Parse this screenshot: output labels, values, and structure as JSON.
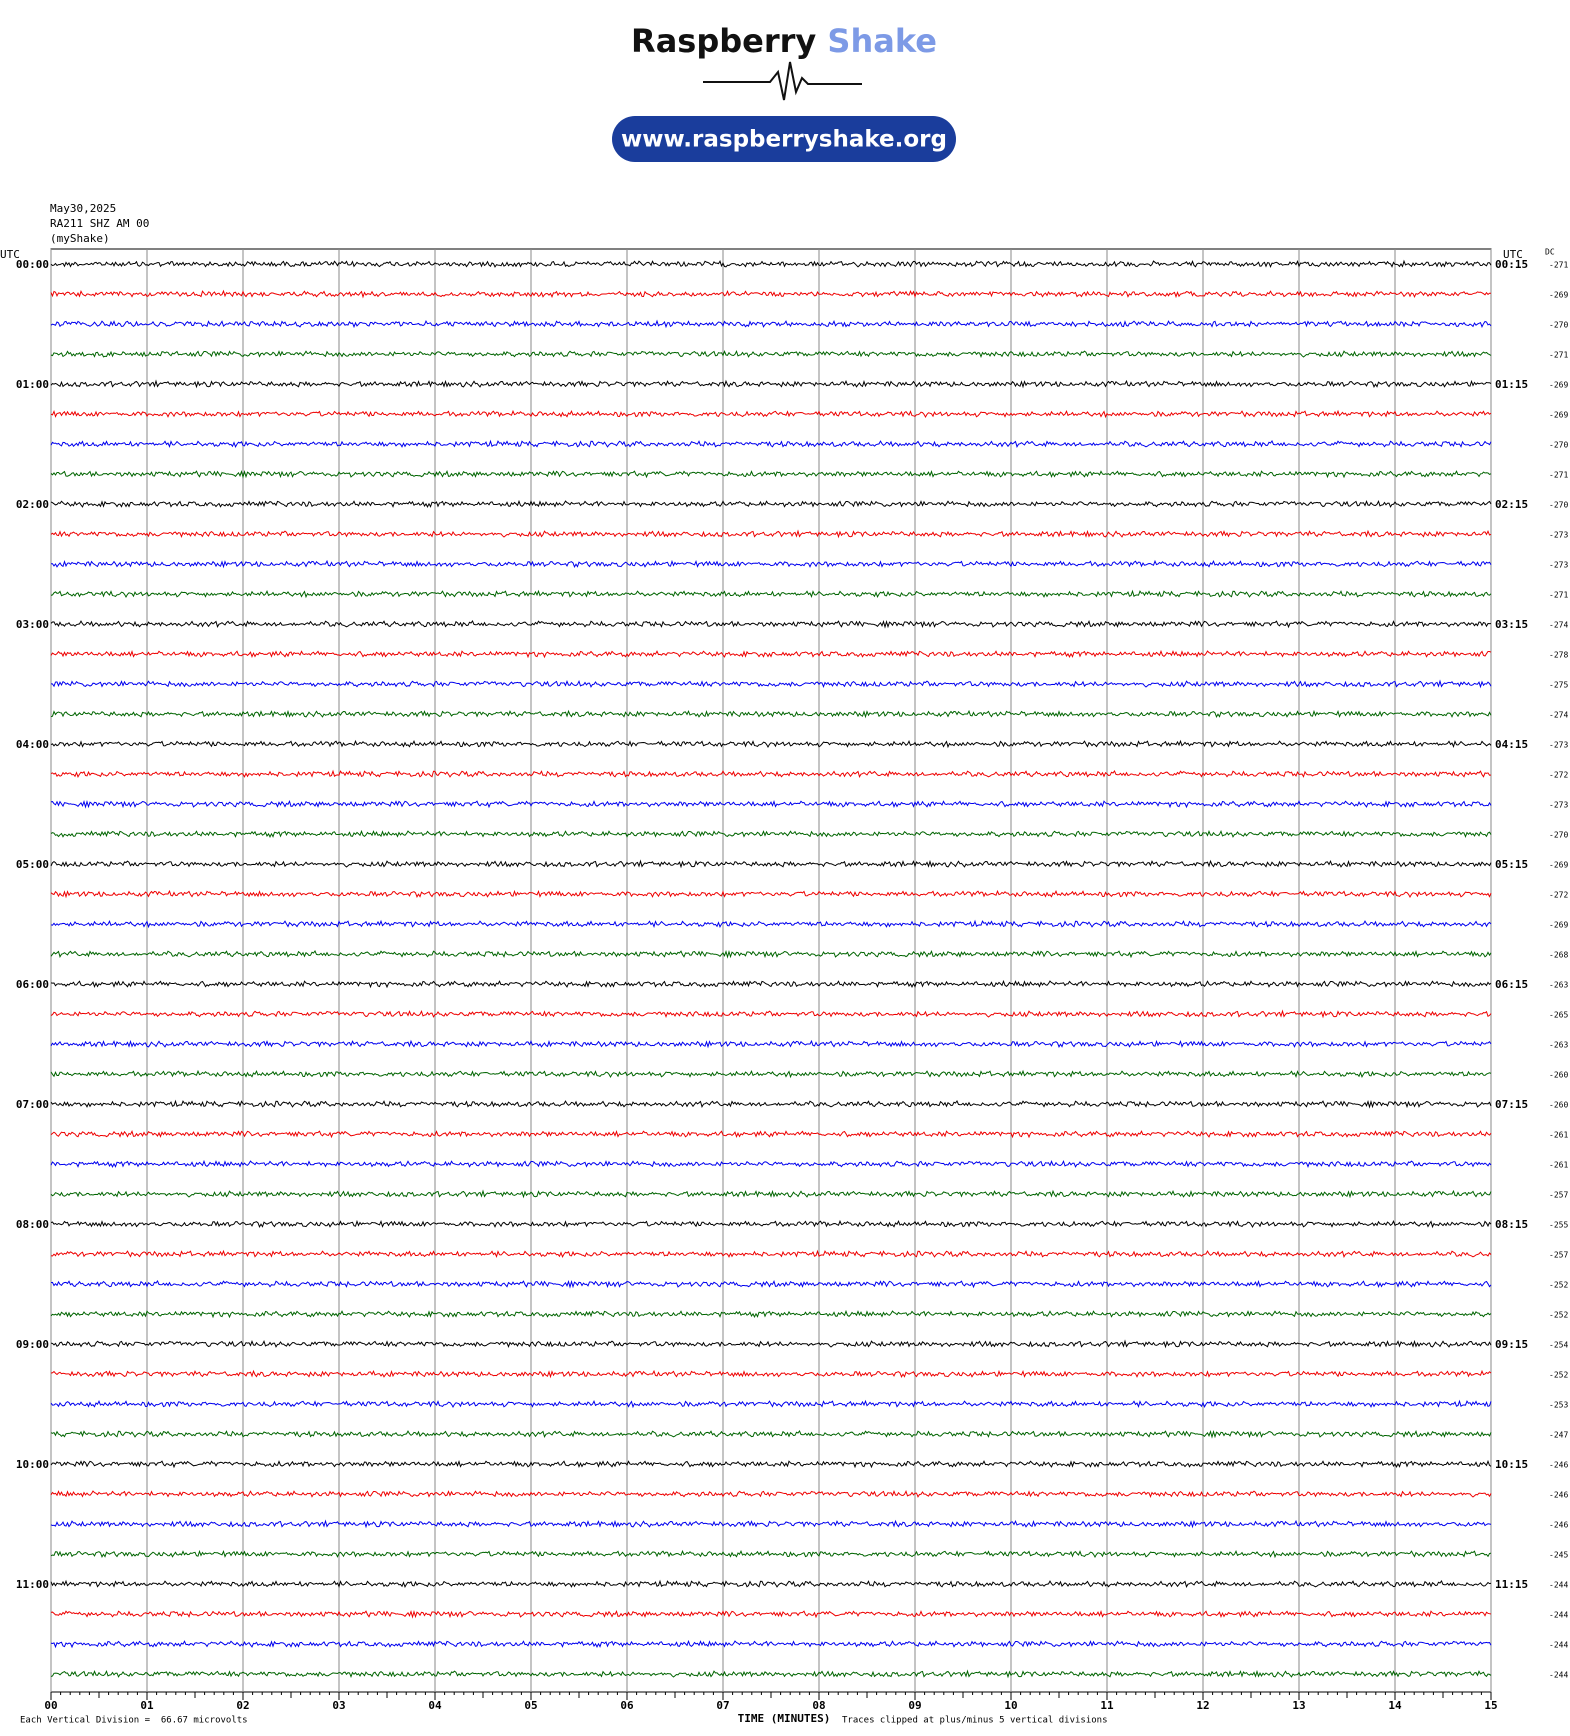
{
  "header": {
    "brand_1": "Raspberry",
    "brand_2": "Shake",
    "url": "www.raspberryshake.org"
  },
  "chart_data": {
    "type": "helicorder",
    "info": [
      "May30,2025",
      "RA211 SHZ AM 00",
      "(myShake)"
    ],
    "left_axis_label": "UTC",
    "right_axis_label": "UTC",
    "dc_label": "DC",
    "row_labels_left": [
      "00:00",
      "01:00",
      "02:00",
      "03:00",
      "04:00",
      "05:00",
      "06:00",
      "07:00",
      "08:00",
      "09:00",
      "10:00",
      "11:00"
    ],
    "row_labels_right": [
      "00:15",
      "01:15",
      "02:15",
      "03:15",
      "04:15",
      "05:15",
      "06:15",
      "07:15",
      "08:15",
      "09:15",
      "10:15",
      "11:15"
    ],
    "dc": [
      -271,
      -269,
      -270,
      -271,
      -269,
      -269,
      -270,
      -271,
      -270,
      -273,
      -273,
      -271,
      -274,
      -278,
      -275,
      -274,
      -273,
      -272,
      -273,
      -270,
      -269,
      -272,
      -269,
      -268,
      -263,
      -265,
      -263,
      -260,
      -260,
      -261,
      -261,
      -257,
      -255,
      -257,
      -252,
      -252,
      -254,
      -252,
      -253,
      -247,
      -246,
      -246,
      -246,
      -245,
      -244,
      -244,
      -244,
      -244
    ],
    "colors": [
      "#000000",
      "#ee0000",
      "#0000ee",
      "#006400"
    ],
    "xlim": [
      0,
      15
    ],
    "xticks": [
      {
        "value": 0,
        "label": "00"
      },
      {
        "value": 1,
        "label": "01"
      },
      {
        "value": 2,
        "label": "02"
      },
      {
        "value": 3,
        "label": "03"
      },
      {
        "value": 4,
        "label": "04"
      },
      {
        "value": 5,
        "label": "05"
      },
      {
        "value": 6,
        "label": "06"
      },
      {
        "value": 7,
        "label": "07"
      },
      {
        "value": 8,
        "label": "08"
      },
      {
        "value": 9,
        "label": "09"
      },
      {
        "value": 10,
        "label": "10"
      },
      {
        "value": 11,
        "label": "11"
      },
      {
        "value": 12,
        "label": "12"
      },
      {
        "value": 13,
        "label": "13"
      },
      {
        "value": 14,
        "label": "14"
      },
      {
        "value": 15,
        "label": "15"
      }
    ],
    "x_label": "TIME (MINUTES)",
    "footer_left": "Each Vertical Division =  66.67 microvolts",
    "footer_right": "Traces clipped at plus/minus 5 vertical divisions",
    "grid": true
  }
}
